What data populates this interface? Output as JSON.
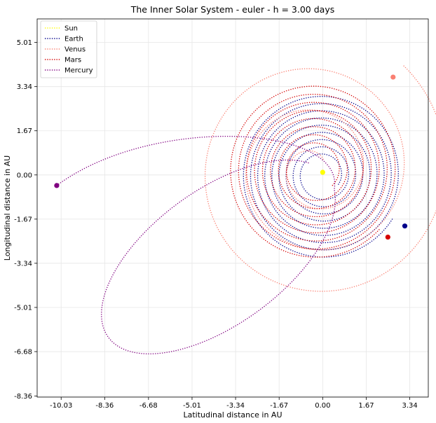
{
  "chart_data": {
    "type": "line",
    "title": "The Inner Solar System - euler - h = 3.00 days",
    "xlabel": "Latitudinal distance in AU",
    "ylabel": "Longitudinal distance in AU",
    "xlim": [
      -10.95,
      4.05
    ],
    "ylim": [
      -8.4,
      5.9
    ],
    "xticks": [
      -10.03,
      -8.36,
      -6.68,
      -5.01,
      -3.34,
      -1.67,
      0.0,
      1.67,
      3.34
    ],
    "xtick_labels": [
      "-10.03",
      "-8.36",
      "-6.68",
      "-5.01",
      "-3.34",
      "-1.67",
      "0.00",
      "1.67",
      "3.34"
    ],
    "yticks": [
      5.01,
      3.34,
      1.67,
      0.0,
      -1.67,
      -3.34,
      -5.01,
      -6.68,
      -8.36
    ],
    "ytick_labels": [
      "5.01",
      "3.34",
      "1.67",
      "0.00",
      "-1.67",
      "-3.34",
      "-5.01",
      "-6.68",
      "-8.36"
    ],
    "grid": true,
    "legend_position": "top-left",
    "series": [
      {
        "name": "Sun",
        "color": "#ffff00",
        "line_style": "dotted",
        "final_position": [
          0.0,
          0.1
        ],
        "orbit": {
          "type": "point"
        }
      },
      {
        "name": "Earth",
        "color": "#00008b",
        "line_style": "dotted",
        "final_position": [
          3.15,
          -1.93
        ],
        "orbit": {
          "type": "spiral",
          "center": [
            0.0,
            0.0
          ],
          "r_start": 0.7,
          "r_end": 3.15,
          "turns": 9
        }
      },
      {
        "name": "Venus",
        "color": "#fa8072",
        "line_style": "dotted",
        "final_position": [
          2.7,
          3.7
        ],
        "orbit": {
          "type": "spiral",
          "center": [
            -0.3,
            0.2
          ],
          "r_start": 0.5,
          "r_end": 5.2,
          "turns": 3
        }
      },
      {
        "name": "Mars",
        "color": "#d50000",
        "line_style": "dotted",
        "final_position": [
          2.5,
          -2.35
        ],
        "orbit": {
          "type": "spiral",
          "center": [
            -0.3,
            0.2
          ],
          "r_start": 0.9,
          "r_end": 3.35,
          "turns": 8
        }
      },
      {
        "name": "Mercury",
        "color": "#800080",
        "line_style": "dotted",
        "final_position": [
          -10.2,
          -0.4
        ],
        "orbit": {
          "type": "arc-loop"
        }
      }
    ]
  }
}
